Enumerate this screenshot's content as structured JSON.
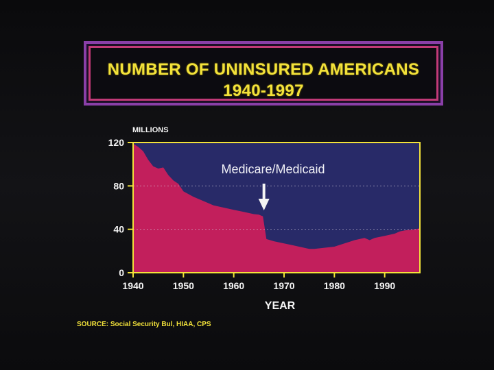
{
  "title": {
    "line1": "NUMBER OF UNINSURED AMERICANS",
    "line2": "1940-1997"
  },
  "source": "SOURCE: Social Security Bul, HIAA, CPS",
  "colors": {
    "area": "#c21f5c",
    "background": "#282a68",
    "frame": "#f3e23a",
    "text": "#f5f5f5",
    "title": "#f3e23a"
  },
  "chart_data": {
    "type": "area",
    "title": "NUMBER OF UNINSURED AMERICANS 1940-1997",
    "ylabel": "MILLIONS",
    "xlabel": "YEAR",
    "ylim": [
      0,
      120
    ],
    "xlim": [
      1940,
      1997
    ],
    "yticks": [
      0,
      40,
      80,
      120
    ],
    "xticks": [
      1940,
      1950,
      1960,
      1970,
      1980,
      1990
    ],
    "gridlines": [
      40,
      80
    ],
    "annotation": {
      "text": "Medicare/Medicaid",
      "arrow_to_year": 1966
    },
    "series": [
      {
        "name": "Uninsured Americans",
        "x": [
          1940,
          1941,
          1942,
          1943,
          1944,
          1945,
          1946,
          1947,
          1948,
          1949,
          1950,
          1952,
          1954,
          1956,
          1958,
          1960,
          1962,
          1964,
          1965,
          1965.8,
          1966.5,
          1968,
          1970,
          1972,
          1974,
          1975,
          1976,
          1978,
          1980,
          1982,
          1984,
          1986,
          1987,
          1988,
          1990,
          1992,
          1993,
          1994,
          1996,
          1997
        ],
        "values": [
          119,
          116,
          112,
          104,
          98,
          96,
          97,
          90,
          85,
          82,
          75,
          70,
          66,
          62,
          60,
          58,
          56,
          54,
          53.5,
          52,
          31,
          29,
          27,
          25,
          23,
          22,
          22,
          23,
          24,
          27,
          30,
          32,
          30,
          32,
          34,
          36,
          38,
          39,
          40,
          41
        ]
      }
    ]
  }
}
